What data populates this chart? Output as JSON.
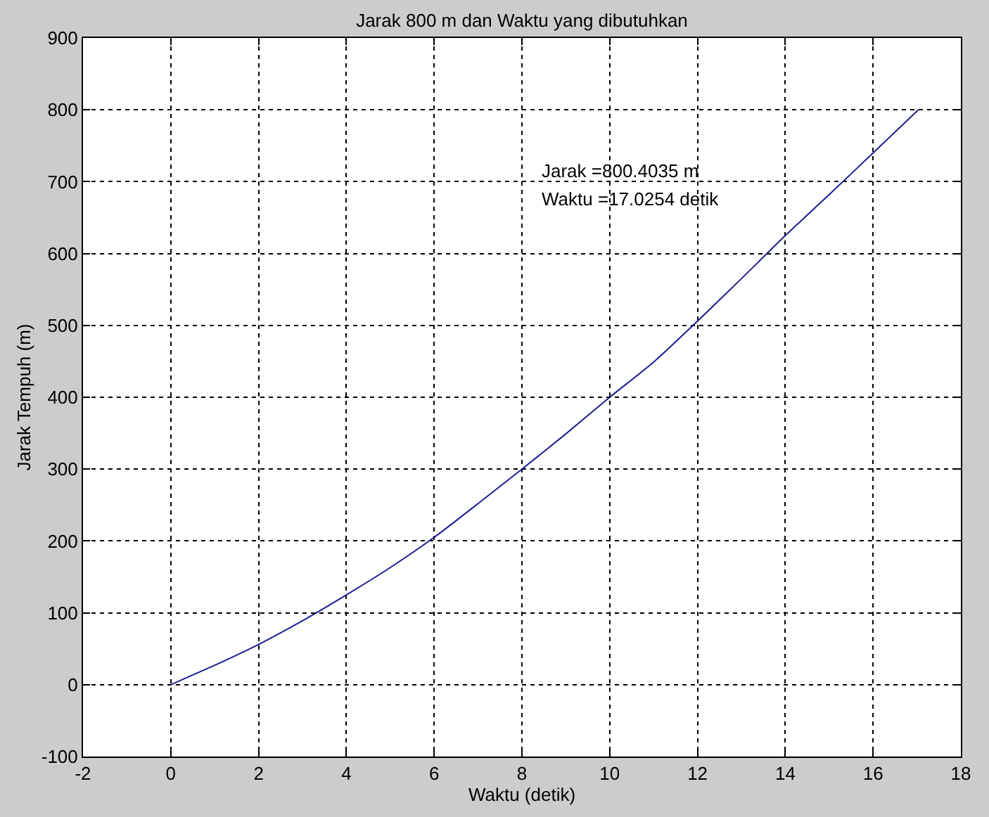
{
  "chart_data": {
    "type": "line",
    "title": "Jarak 800 m dan Waktu yang dibutuhkan",
    "xlabel": "Waktu (detik)",
    "ylabel": "Jarak Tempuh (m)",
    "annotations": [
      "Jarak =800.4035 m",
      "Waktu =17.0254 detik"
    ],
    "x": [
      0,
      1,
      2,
      3,
      4,
      5,
      6,
      7,
      8,
      9,
      10,
      11,
      12,
      13,
      14,
      15,
      16,
      17.03
    ],
    "series": [
      {
        "color": "#1c1c96",
        "values": [
          0,
          27,
          56,
          89,
          125,
          163,
          205,
          252,
          300,
          349,
          400,
          449,
          506,
          565,
          625,
          682,
          740,
          800
        ]
      }
    ],
    "xlim": [
      -2,
      18
    ],
    "ylim": [
      -100,
      900
    ],
    "xticks": [
      -2,
      0,
      2,
      4,
      6,
      8,
      10,
      12,
      14,
      16,
      18
    ],
    "yticks": [
      -100,
      0,
      100,
      200,
      300,
      400,
      500,
      600,
      700,
      800,
      900
    ],
    "grid": true,
    "marker": "none",
    "line_style": "solid"
  }
}
